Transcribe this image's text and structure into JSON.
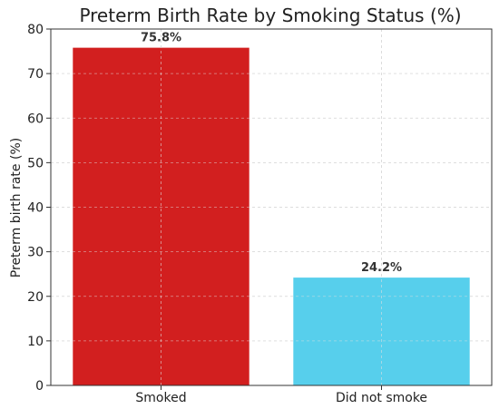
{
  "chart_data": {
    "type": "bar",
    "title": "Preterm Birth Rate by Smoking Status (%)",
    "xlabel": "",
    "ylabel": "Preterm birth rate (%)",
    "categories": [
      "Smoked",
      "Did not smoke"
    ],
    "values": [
      75.8,
      24.2
    ],
    "data_labels": [
      "75.8%",
      "24.2%"
    ],
    "colors": [
      "#d21f1f",
      "#57cfec"
    ],
    "ylim": [
      0,
      80
    ],
    "yticks": [
      0,
      10,
      20,
      30,
      40,
      50,
      60,
      70,
      80
    ],
    "grid": true,
    "legend": "none"
  }
}
